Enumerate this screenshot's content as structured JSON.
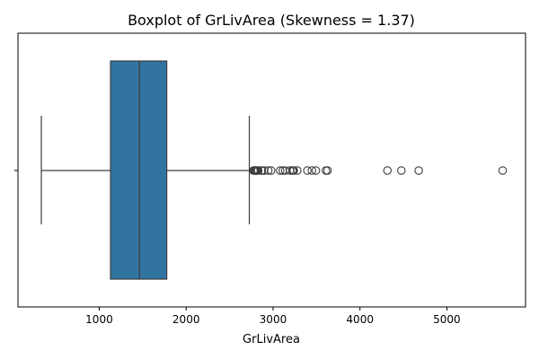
{
  "chart_data": {
    "type": "boxplot",
    "title": "Boxplot of GrLivArea (Skewness = 1.37)",
    "xlabel": "GrLivArea",
    "ylabel": "",
    "xlim": [
      65,
      5905
    ],
    "xticks": [
      1000,
      2000,
      3000,
      4000,
      5000
    ],
    "grid": false,
    "legend": "none",
    "box": {
      "whisker_low": 334,
      "q1": 1130,
      "median": 1464,
      "q3": 1777,
      "whisker_high": 2727
    },
    "outliers": [
      2775,
      2784,
      2792,
      2800,
      2810,
      2822,
      2829,
      2868,
      2872,
      2898,
      2945,
      2978,
      3082,
      3112,
      3140,
      3194,
      3222,
      3228,
      3238,
      3279,
      3395,
      3447,
      3493,
      3608,
      3627,
      4316,
      4476,
      4676,
      5642
    ],
    "colors": {
      "box_fill": "#3274a1",
      "line": "#3d3d3d"
    }
  }
}
